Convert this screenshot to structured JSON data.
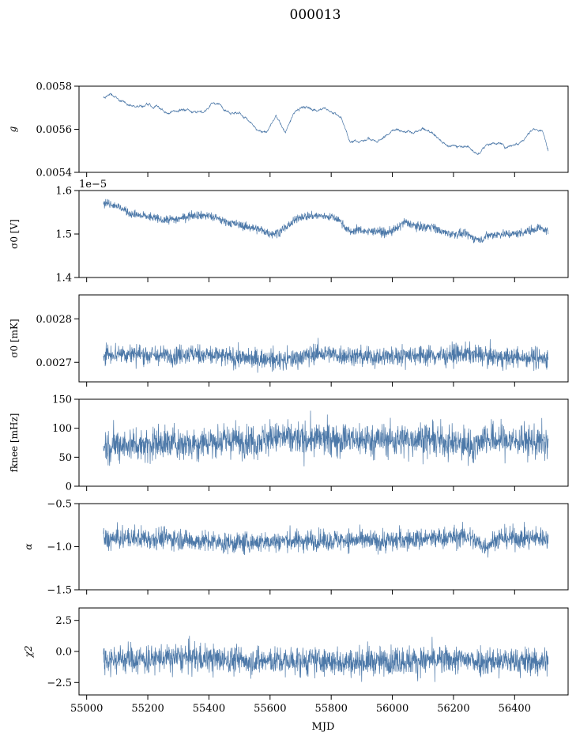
{
  "figure": {
    "title": "000013",
    "xlabel": "MJD",
    "xlim": [
      54975,
      56575
    ],
    "xticks": [
      55000,
      55200,
      55400,
      55600,
      55800,
      56000,
      56200,
      56400
    ],
    "xtick_labels": [
      "55000",
      "55200",
      "55400",
      "55600",
      "55800",
      "56000",
      "56200",
      "56400"
    ],
    "data_range": [
      55055,
      56510
    ]
  },
  "series_color": "#4c78a8",
  "chart_data": [
    {
      "type": "line",
      "ylabel": "g",
      "ylim": [
        0.0054,
        0.0058
      ],
      "yticks": [
        0.0054,
        0.0056,
        0.0058
      ],
      "ytick_labels": [
        "0.0054",
        "0.0056",
        "0.0058"
      ],
      "x": [
        55055,
        55080,
        55110,
        55140,
        55170,
        55200,
        55230,
        55260,
        55290,
        55320,
        55350,
        55380,
        55410,
        55440,
        55470,
        55500,
        55530,
        55560,
        55590,
        55620,
        55650,
        55680,
        55710,
        55740,
        55770,
        55800,
        55830,
        55860,
        55890,
        55920,
        55950,
        55980,
        56010,
        56040,
        56070,
        56100,
        56130,
        56160,
        56190,
        56220,
        56250,
        56280,
        56310,
        56340,
        56370,
        56400,
        56430,
        56460,
        56490,
        56510
      ],
      "y": [
        0.005745,
        0.00576,
        0.005735,
        0.005715,
        0.005705,
        0.00572,
        0.005705,
        0.00567,
        0.00569,
        0.005695,
        0.005685,
        0.00567,
        0.005725,
        0.00571,
        0.00568,
        0.005675,
        0.00564,
        0.00559,
        0.00559,
        0.00566,
        0.005585,
        0.00568,
        0.005705,
        0.00569,
        0.005695,
        0.005685,
        0.005655,
        0.00555,
        0.00554,
        0.00556,
        0.00554,
        0.00557,
        0.005605,
        0.00559,
        0.00558,
        0.0056,
        0.005585,
        0.005545,
        0.00552,
        0.005525,
        0.00552,
        0.00548,
        0.00553,
        0.00554,
        0.00552,
        0.00553,
        0.005555,
        0.0056,
        0.00559,
        0.00551
      ],
      "noise": 6e-06
    },
    {
      "type": "line",
      "ylabel": "σ0 [V]",
      "offset_text": "1e−5",
      "ylim": [
        1.4,
        1.6
      ],
      "yticks": [
        1.4,
        1.5,
        1.6
      ],
      "ytick_labels": [
        "1.4",
        "1.5",
        "1.6"
      ],
      "x": [
        55055,
        55080,
        55110,
        55150,
        55200,
        55250,
        55300,
        55350,
        55400,
        55450,
        55500,
        55540,
        55570,
        55600,
        55630,
        55660,
        55700,
        55750,
        55800,
        55830,
        55860,
        55890,
        55920,
        55950,
        55980,
        56010,
        56040,
        56070,
        56100,
        56130,
        56160,
        56200,
        56240,
        56270,
        56290,
        56310,
        56350,
        56400,
        56450,
        56480,
        56510
      ],
      "y": [
        1.572,
        1.57,
        1.56,
        1.545,
        1.54,
        1.532,
        1.535,
        1.545,
        1.542,
        1.53,
        1.52,
        1.515,
        1.51,
        1.5,
        1.505,
        1.52,
        1.54,
        1.542,
        1.54,
        1.53,
        1.505,
        1.51,
        1.505,
        1.508,
        1.502,
        1.51,
        1.528,
        1.52,
        1.515,
        1.518,
        1.505,
        1.5,
        1.5,
        1.49,
        1.485,
        1.497,
        1.5,
        1.5,
        1.508,
        1.515,
        1.505
      ],
      "noise": 0.012
    },
    {
      "type": "line",
      "ylabel": "σ0 [mK]",
      "ylim": [
        0.002655,
        0.002855
      ],
      "yticks": [
        0.0027,
        0.0028
      ],
      "ytick_labels": [
        "0.0027",
        "0.0028"
      ],
      "x": [
        55055,
        55150,
        55250,
        55350,
        55450,
        55550,
        55650,
        55750,
        55850,
        55950,
        56050,
        56150,
        56250,
        56350,
        56450,
        56510
      ],
      "y": [
        0.00272,
        0.00272,
        0.002715,
        0.00272,
        0.002713,
        0.002708,
        0.002705,
        0.00272,
        0.002715,
        0.002712,
        0.002718,
        0.002715,
        0.00272,
        0.00271,
        0.002712,
        0.002708
      ],
      "noise": 2.8e-05
    },
    {
      "type": "line",
      "ylabel": "fknee [mHz]",
      "ylim": [
        0,
        150
      ],
      "yticks": [
        0,
        50,
        100,
        150
      ],
      "ytick_labels": [
        "0",
        "50",
        "100",
        "150"
      ],
      "x": [
        55055,
        55150,
        55250,
        55350,
        55450,
        55550,
        55620,
        55700,
        55800,
        55900,
        56000,
        56100,
        56200,
        56270,
        56300,
        56330,
        56400,
        56510
      ],
      "y": [
        70,
        72,
        74,
        75,
        78,
        78,
        85,
        80,
        82,
        80,
        80,
        82,
        75,
        70,
        85,
        80,
        78,
        75
      ],
      "noise": 35
    },
    {
      "type": "line",
      "ylabel": "α",
      "ylim": [
        -1.5,
        -0.5
      ],
      "yticks": [
        -1.5,
        -1.0,
        -0.5
      ],
      "ytick_labels": [
        "−1.5",
        "−1.0",
        "−0.5"
      ],
      "x": [
        55055,
        55150,
        55250,
        55350,
        55450,
        55550,
        55650,
        55750,
        55850,
        55950,
        56050,
        56150,
        56250,
        56300,
        56350,
        56450,
        56510
      ],
      "y": [
        -0.92,
        -0.9,
        -0.9,
        -0.93,
        -0.96,
        -0.95,
        -0.93,
        -0.93,
        -0.92,
        -0.94,
        -0.92,
        -0.9,
        -0.88,
        -1.0,
        -0.9,
        -0.9,
        -0.9
      ],
      "noise": 0.15
    },
    {
      "type": "line",
      "ylabel": "χ2",
      "ylim": [
        -3.5,
        3.5
      ],
      "yticks": [
        -2.5,
        0.0,
        2.5
      ],
      "ytick_labels": [
        "−2.5",
        "0.0",
        "2.5"
      ],
      "x": [
        55055,
        55200,
        55350,
        55500,
        55650,
        55800,
        55950,
        56100,
        56250,
        56400,
        56510
      ],
      "y": [
        -0.6,
        -0.6,
        -0.5,
        -0.7,
        -0.8,
        -0.8,
        -0.8,
        -0.7,
        -0.7,
        -0.8,
        -0.8
      ],
      "noise": 1.4
    }
  ]
}
